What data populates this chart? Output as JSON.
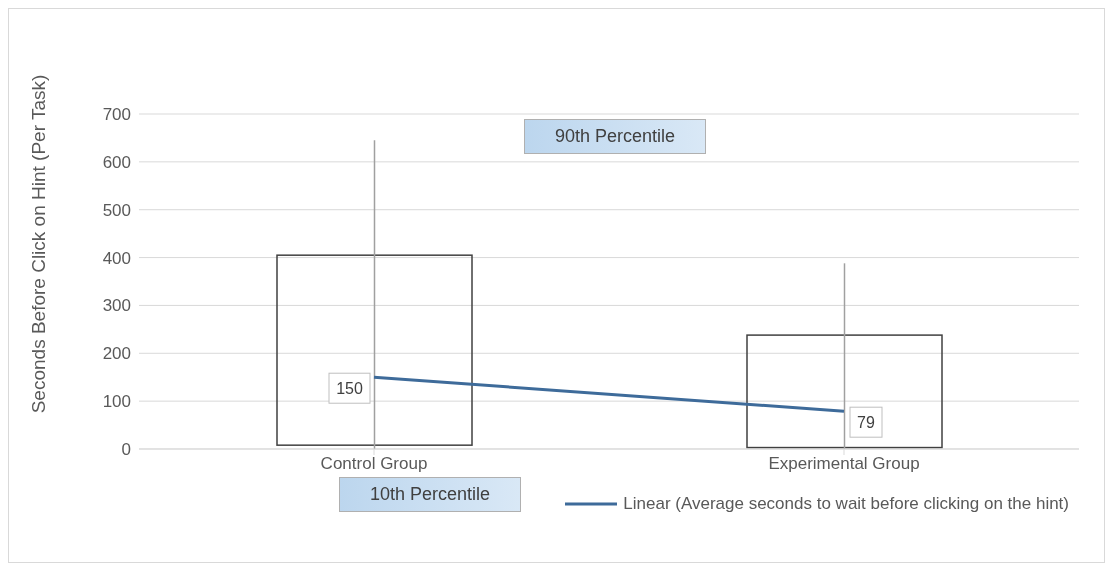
{
  "chart_data": {
    "type": "box",
    "ylabel": "Seconds Before Click on Hint (Per Task)",
    "categories": [
      "Control Group",
      "Experimental Group"
    ],
    "boxes": [
      {
        "low": 0,
        "q1": 8,
        "q3": 405,
        "high": 645
      },
      {
        "low": 0,
        "q1": 3,
        "q3": 238,
        "high": 388
      }
    ],
    "series": [
      {
        "type": "line",
        "name": "Linear (Average seconds to wait before clicking on the hint)",
        "color": "#3e6b9a",
        "values": [
          150,
          79
        ],
        "value_labels": [
          "150",
          "79"
        ]
      }
    ],
    "ylim": [
      0,
      700
    ],
    "yticks": [
      0,
      100,
      200,
      300,
      400,
      500,
      600,
      700
    ],
    "grid": "y",
    "legend": "bottom right",
    "annotations": [
      "90th Percentile",
      "10th Percentile"
    ]
  }
}
